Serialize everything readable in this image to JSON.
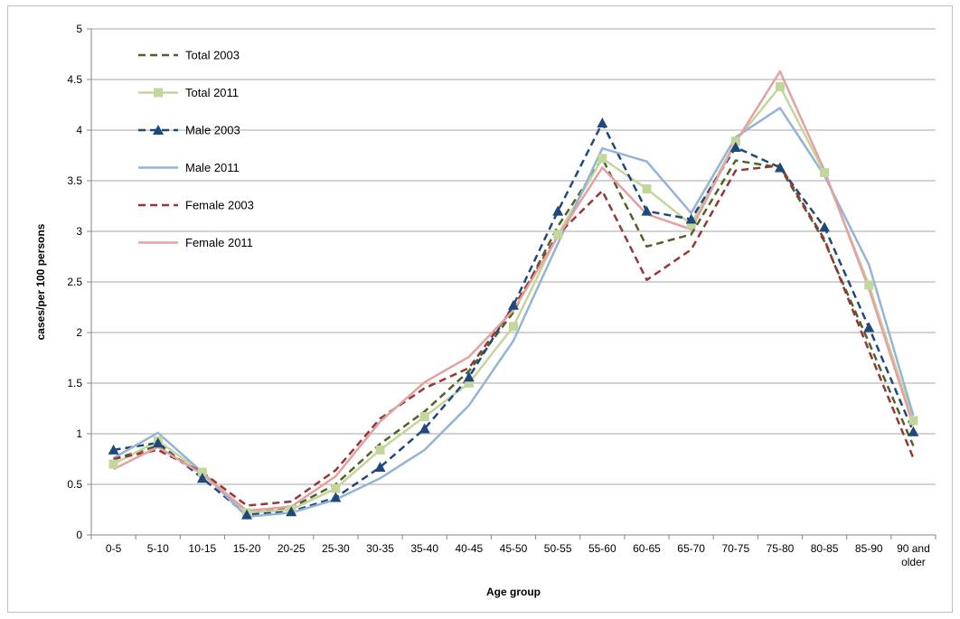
{
  "chart_data": {
    "type": "line",
    "title": "",
    "xlabel": "Age group",
    "ylabel": "cases/per 100 persons",
    "ylim": [
      0,
      5
    ],
    "ytick_step": 0.5,
    "yticks": [
      "0",
      "0.5",
      "1",
      "1.5",
      "2",
      "2.5",
      "3",
      "3.5",
      "4",
      "4.5",
      "5"
    ],
    "grid": "horizontal",
    "legend_position": "top-left",
    "categories": [
      "0-5",
      "5-10",
      "10-15",
      "15-20",
      "20-25",
      "25-30",
      "30-35",
      "35-40",
      "40-45",
      "45-50",
      "50-55",
      "55-60",
      "60-65",
      "65-70",
      "70-75",
      "75-80",
      "80-85",
      "85-90",
      "90 and older"
    ],
    "series": [
      {
        "name": "Total 2003",
        "color": "#4f6228",
        "dash": "dashed",
        "marker": "none",
        "values": [
          0.75,
          0.88,
          0.6,
          0.23,
          0.27,
          0.5,
          0.9,
          1.22,
          1.62,
          2.2,
          3.05,
          3.72,
          2.85,
          2.97,
          3.7,
          3.63,
          2.9,
          1.9,
          0.88
        ]
      },
      {
        "name": "Total 2011",
        "color": "#c3d69b",
        "dash": "solid",
        "marker": "square",
        "values": [
          0.7,
          0.93,
          0.62,
          0.22,
          0.25,
          0.46,
          0.84,
          1.17,
          1.5,
          2.06,
          2.97,
          3.72,
          3.42,
          3.07,
          3.89,
          4.43,
          3.58,
          2.47,
          1.13
        ]
      },
      {
        "name": "Male 2003",
        "color": "#1f497d",
        "dash": "dashed",
        "marker": "triangle",
        "values": [
          0.84,
          0.91,
          0.56,
          0.2,
          0.23,
          0.37,
          0.67,
          1.05,
          1.56,
          2.27,
          3.2,
          4.07,
          3.2,
          3.12,
          3.83,
          3.63,
          3.04,
          2.05,
          1.02
        ]
      },
      {
        "name": "Male 2011",
        "color": "#95b3d7",
        "dash": "solid",
        "marker": "none",
        "values": [
          0.76,
          1.01,
          0.62,
          0.18,
          0.22,
          0.35,
          0.56,
          0.84,
          1.28,
          1.92,
          2.88,
          3.82,
          3.69,
          3.18,
          3.93,
          4.22,
          3.55,
          2.67,
          1.18
        ]
      },
      {
        "name": "Female 2003",
        "color": "#953735",
        "dash": "dashed",
        "marker": "none",
        "values": [
          0.75,
          0.84,
          0.62,
          0.29,
          0.33,
          0.64,
          1.15,
          1.45,
          1.65,
          2.25,
          2.97,
          3.4,
          2.52,
          2.82,
          3.6,
          3.65,
          2.92,
          1.82,
          0.76
        ]
      },
      {
        "name": "Female 2011",
        "color": "#e6a0a0",
        "dash": "solid",
        "marker": "none",
        "values": [
          0.65,
          0.87,
          0.6,
          0.24,
          0.28,
          0.58,
          1.12,
          1.51,
          1.76,
          2.22,
          2.95,
          3.63,
          3.17,
          3.02,
          3.88,
          4.58,
          3.6,
          2.43,
          1.08
        ]
      }
    ]
  }
}
